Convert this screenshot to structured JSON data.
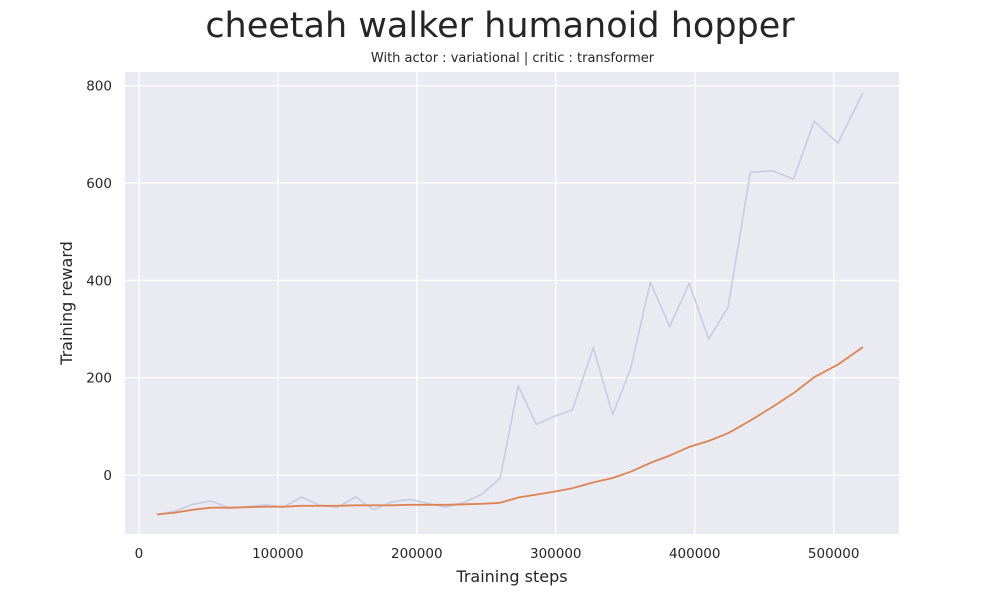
{
  "chart_data": {
    "type": "line",
    "title": "cheetah walker humanoid hopper",
    "subtitle": "With actor : variational | critic : transformer",
    "xlabel": "Training steps",
    "ylabel": "Training reward",
    "xlim": [
      -10000,
      547000
    ],
    "ylim": [
      -121,
      828
    ],
    "xticks": [
      0,
      100000,
      200000,
      300000,
      400000,
      500000
    ],
    "yticks": [
      0,
      200,
      400,
      600,
      800
    ],
    "grid": true,
    "background": "#eaeaf2",
    "series": [
      {
        "style": "raw",
        "color": "#c7cce3",
        "x": [
          13000,
          26000,
          39000,
          52000,
          65000,
          78000,
          91000,
          104000,
          117000,
          130000,
          143000,
          156000,
          169000,
          182000,
          195000,
          208000,
          221000,
          234000,
          247000,
          260000,
          273000,
          286000,
          299000,
          312000,
          327000,
          341000,
          354000,
          368000,
          382000,
          396000,
          410000,
          424000,
          440000,
          456000,
          471000,
          486000,
          503000,
          521000
        ],
        "values": [
          -81,
          -74,
          -60,
          -53,
          -68,
          -65,
          -61,
          -66,
          -45,
          -62,
          -66,
          -45,
          -71,
          -55,
          -50,
          -58,
          -66,
          -56,
          -39,
          -6,
          183,
          104,
          121,
          134,
          262,
          124,
          220,
          396,
          305,
          394,
          279,
          345,
          622,
          625,
          608,
          727,
          682,
          785
        ]
      },
      {
        "style": "smoothed",
        "color": "#dd8452",
        "x": [
          13000,
          26000,
          39000,
          52000,
          65000,
          78000,
          91000,
          104000,
          117000,
          130000,
          143000,
          156000,
          169000,
          182000,
          195000,
          208000,
          221000,
          234000,
          247000,
          260000,
          273000,
          286000,
          299000,
          312000,
          327000,
          341000,
          354000,
          368000,
          382000,
          396000,
          410000,
          424000,
          440000,
          456000,
          471000,
          486000,
          503000,
          521000
        ],
        "values": [
          -81,
          -77,
          -71,
          -67,
          -67,
          -66,
          -65,
          -65,
          -63,
          -63,
          -63,
          -62,
          -62,
          -62,
          -61,
          -61,
          -61,
          -60,
          -59,
          -57,
          -46,
          -40,
          -34,
          -27,
          -15,
          -6,
          7,
          25,
          40,
          58,
          70,
          86,
          112,
          140,
          168,
          201,
          227,
          263
        ]
      }
    ]
  }
}
